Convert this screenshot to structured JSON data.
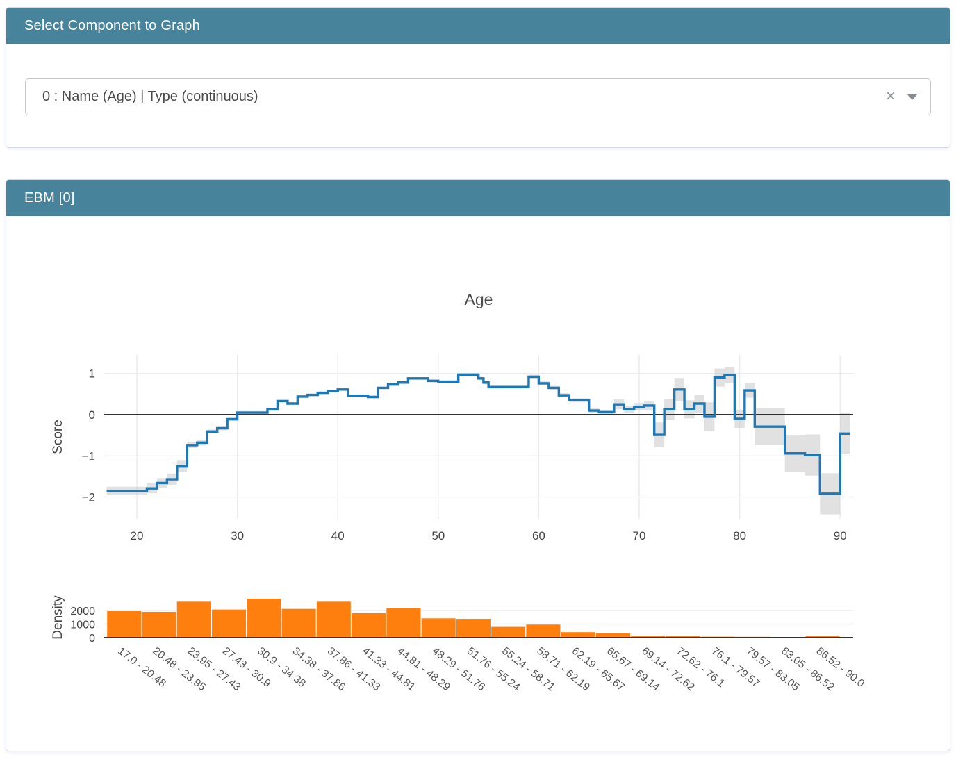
{
  "select_panel": {
    "header": "Select Component to Graph",
    "dropdown": {
      "value": "0 : Name (Age) | Type (continuous)",
      "clear_icon": "×"
    }
  },
  "graph_panel": {
    "header": "EBM [0]"
  },
  "colors": {
    "header_bg": "#47839b",
    "line": "#1f77b4",
    "band": "#c9c9c9",
    "bar": "#ff7f0e",
    "zero_line": "#333333",
    "grid": "#ebebeb",
    "axis_text": "#444444",
    "title_text": "#4c4c4c"
  },
  "chart_data": [
    {
      "type": "line",
      "subtype": "step-with-error-band",
      "title": "Age",
      "xlabel": "",
      "ylabel": "Score",
      "xlim": [
        16.7,
        91.3
      ],
      "ylim": [
        -2.5,
        1.45
      ],
      "xticks": [
        20,
        30,
        40,
        50,
        60,
        70,
        80,
        90
      ],
      "yticks": [
        1,
        0,
        -1,
        -2
      ],
      "grid": true,
      "zeroline": true,
      "x_end": 91,
      "steps_comment": "each step = [age_left_edge, score, error_halfwidth]; score holds until next edge",
      "steps": [
        [
          17,
          -1.85,
          0.1
        ],
        [
          21,
          -1.79,
          0.12
        ],
        [
          22,
          -1.66,
          0.12
        ],
        [
          23,
          -1.57,
          0.14
        ],
        [
          24,
          -1.26,
          0.14
        ],
        [
          25,
          -0.74,
          0.07
        ],
        [
          26,
          -0.68,
          0.07
        ],
        [
          27,
          -0.41,
          0.05
        ],
        [
          28,
          -0.33,
          0.05
        ],
        [
          29,
          -0.11,
          0.04
        ],
        [
          30,
          0.05,
          0.04
        ],
        [
          33,
          0.13,
          0.04
        ],
        [
          34,
          0.33,
          0.03
        ],
        [
          35,
          0.27,
          0.03
        ],
        [
          36,
          0.44,
          0.03
        ],
        [
          37,
          0.48,
          0.03
        ],
        [
          38,
          0.53,
          0.03
        ],
        [
          39,
          0.57,
          0.03
        ],
        [
          40,
          0.61,
          0.03
        ],
        [
          41,
          0.46,
          0.03
        ],
        [
          43,
          0.43,
          0.03
        ],
        [
          44,
          0.65,
          0.03
        ],
        [
          45,
          0.73,
          0.03
        ],
        [
          46,
          0.78,
          0.03
        ],
        [
          47,
          0.88,
          0.03
        ],
        [
          49,
          0.82,
          0.03
        ],
        [
          50,
          0.8,
          0.03
        ],
        [
          52,
          0.97,
          0.04
        ],
        [
          54,
          0.88,
          0.04
        ],
        [
          54.5,
          0.78,
          0.04
        ],
        [
          55,
          0.67,
          0.04
        ],
        [
          59,
          0.92,
          0.05
        ],
        [
          60,
          0.76,
          0.05
        ],
        [
          61,
          0.65,
          0.05
        ],
        [
          62,
          0.47,
          0.05
        ],
        [
          63,
          0.35,
          0.05
        ],
        [
          65,
          0.1,
          0.06
        ],
        [
          66,
          0.06,
          0.06
        ],
        [
          67.5,
          0.25,
          0.12
        ],
        [
          68.5,
          0.13,
          0.09
        ],
        [
          69.5,
          0.19,
          0.09
        ],
        [
          70.5,
          0.22,
          0.1
        ],
        [
          71.5,
          -0.49,
          0.3
        ],
        [
          72.5,
          0.13,
          0.25
        ],
        [
          73.5,
          0.61,
          0.28
        ],
        [
          74.5,
          0.13,
          0.22
        ],
        [
          75.5,
          0.27,
          0.22
        ],
        [
          76.5,
          -0.05,
          0.35
        ],
        [
          77.5,
          0.9,
          0.22
        ],
        [
          78.5,
          0.96,
          0.2
        ],
        [
          79.5,
          -0.1,
          0.22
        ],
        [
          80.5,
          0.59,
          0.18
        ],
        [
          81.5,
          -0.29,
          0.45
        ],
        [
          84.5,
          -0.94,
          0.45
        ],
        [
          86.5,
          -0.98,
          0.5
        ],
        [
          88,
          -1.92,
          0.5
        ],
        [
          90,
          -0.46,
          0.5
        ]
      ]
    },
    {
      "type": "bar",
      "title": "",
      "xlabel": "",
      "ylabel": "Density",
      "ylim": [
        0,
        3300
      ],
      "yticks": [
        0,
        1000,
        2000
      ],
      "grid": true,
      "bin_edges": [
        17.0,
        20.48,
        23.95,
        27.43,
        30.9,
        34.38,
        37.86,
        41.33,
        44.81,
        48.29,
        51.76,
        55.24,
        58.71,
        62.19,
        65.67,
        69.14,
        72.62,
        76.1,
        79.57,
        83.05,
        86.52,
        90.0
      ],
      "categories": [
        "17.0 - 20.48",
        "20.48 - 23.95",
        "23.95 - 27.43",
        "27.43 - 30.9",
        "30.9 - 34.38",
        "34.38 - 37.86",
        "37.86 - 41.33",
        "41.33 - 44.81",
        "44.81 - 48.29",
        "48.29 - 51.76",
        "51.76 - 55.24",
        "55.24 - 58.71",
        "58.71 - 62.19",
        "62.19 - 65.67",
        "65.67 - 69.14",
        "69.14 - 72.62",
        "72.62 - 76.1",
        "76.1 - 79.57",
        "79.57 - 83.05",
        "83.05 - 86.52",
        "86.52 - 90.0"
      ],
      "values": [
        2000,
        1900,
        2650,
        2070,
        2870,
        2120,
        2650,
        1800,
        2200,
        1420,
        1380,
        790,
        960,
        400,
        310,
        150,
        110,
        70,
        60,
        40,
        110
      ]
    }
  ]
}
